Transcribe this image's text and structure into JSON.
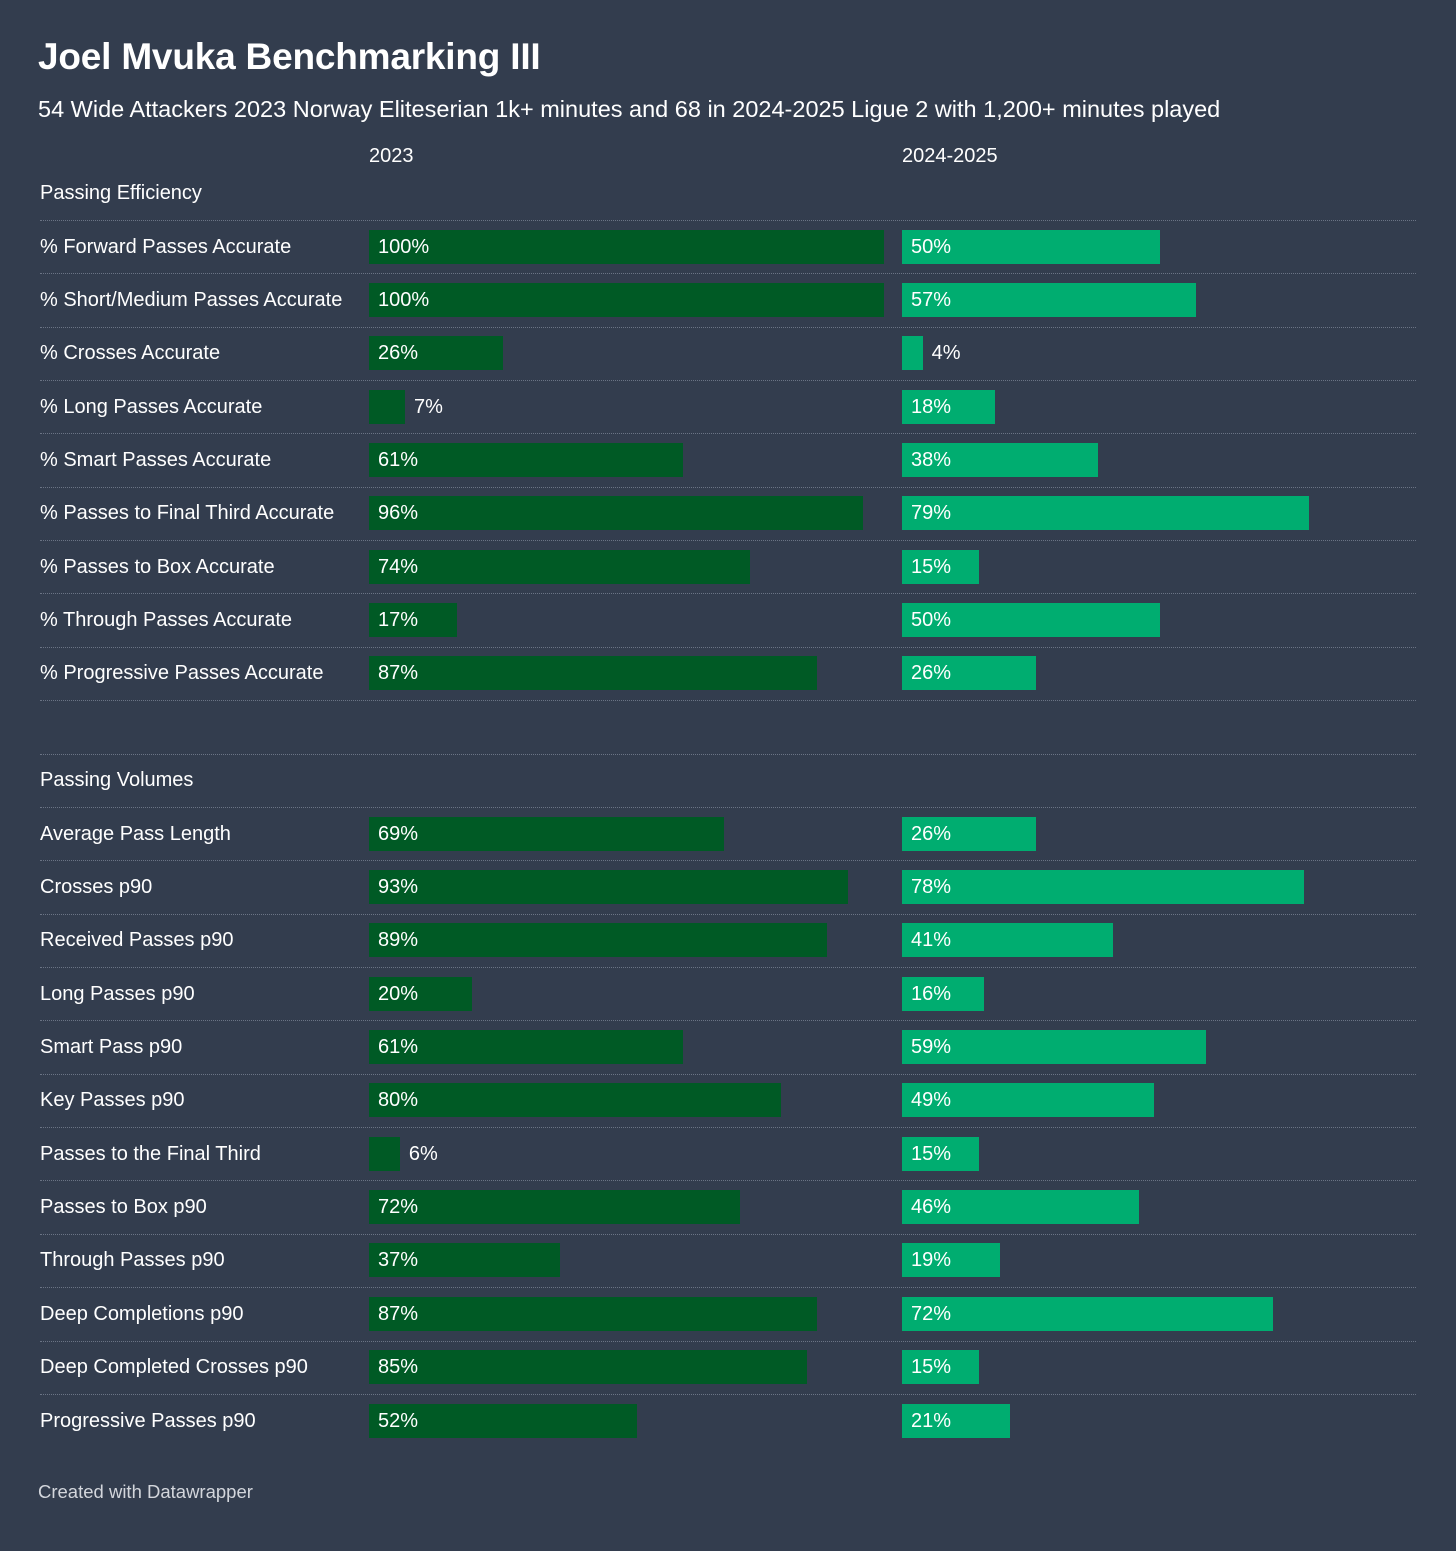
{
  "header": {
    "title": "Joel Mvuka Benchmarking III",
    "subtitle": "54 Wide Attackers 2023 Norway Eliteserian 1k+ minutes and 68 in 2024-2025 Ligue 2 with 1,200+ minutes played"
  },
  "columns": [
    "2023",
    "2024-2025"
  ],
  "footer": "Created with Datawrapper",
  "colors": {
    "background": "#333d4e",
    "series_2023": "#005a25",
    "series_2024_2025": "#00ad70"
  },
  "chart_data": {
    "type": "bar",
    "orientation": "horizontal",
    "value_unit": "%",
    "xlim": [
      0,
      100
    ],
    "series": [
      {
        "name": "2023",
        "color": "#005a25"
      },
      {
        "name": "2024-2025",
        "color": "#00ad70"
      }
    ],
    "groups": [
      {
        "name": "Passing Efficiency",
        "rows": [
          {
            "label": "% Forward Passes Accurate",
            "v2023": 100,
            "v2025": 50
          },
          {
            "label": "% Short/Medium Passes Accurate",
            "v2023": 100,
            "v2025": 57
          },
          {
            "label": "% Crosses Accurate",
            "v2023": 26,
            "v2025": 4
          },
          {
            "label": "% Long Passes Accurate",
            "v2023": 7,
            "v2025": 18
          },
          {
            "label": "% Smart Passes Accurate",
            "v2023": 61,
            "v2025": 38
          },
          {
            "label": "% Passes to Final Third Accurate",
            "v2023": 96,
            "v2025": 79
          },
          {
            "label": "% Passes to Box Accurate",
            "v2023": 74,
            "v2025": 15
          },
          {
            "label": "% Through Passes Accurate",
            "v2023": 17,
            "v2025": 50
          },
          {
            "label": "% Progressive Passes Accurate",
            "v2023": 87,
            "v2025": 26
          }
        ]
      },
      {
        "name": "Passing Volumes",
        "rows": [
          {
            "label": "Average Pass Length",
            "v2023": 69,
            "v2025": 26
          },
          {
            "label": "Crosses p90",
            "v2023": 93,
            "v2025": 78
          },
          {
            "label": "Received Passes p90",
            "v2023": 89,
            "v2025": 41
          },
          {
            "label": "Long Passes p90",
            "v2023": 20,
            "v2025": 16
          },
          {
            "label": "Smart Pass p90",
            "v2023": 61,
            "v2025": 59
          },
          {
            "label": "Key Passes p90",
            "v2023": 80,
            "v2025": 49
          },
          {
            "label": "Passes to the Final Third",
            "v2023": 6,
            "v2025": 15
          },
          {
            "label": "Passes to Box p90",
            "v2023": 72,
            "v2025": 46
          },
          {
            "label": "Through Passes p90",
            "v2023": 37,
            "v2025": 19
          },
          {
            "label": "Deep Completions p90",
            "v2023": 87,
            "v2025": 72
          },
          {
            "label": "Deep Completed Crosses p90",
            "v2023": 85,
            "v2025": 15
          },
          {
            "label": "Progressive Passes p90",
            "v2023": 52,
            "v2025": 21
          }
        ]
      }
    ]
  }
}
